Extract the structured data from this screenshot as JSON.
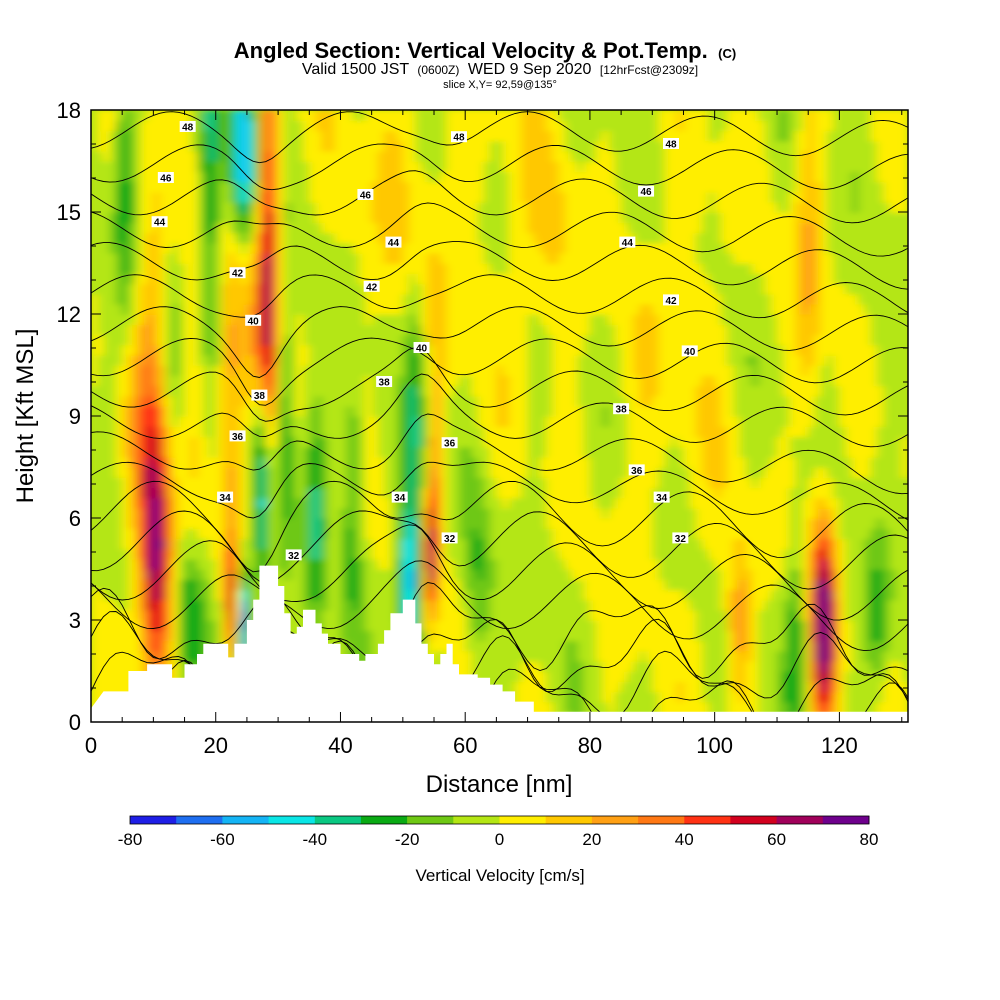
{
  "title": {
    "main": "Angled Section: Vertical Velocity & Pot.Temp.",
    "main_tag": "(C)",
    "valid_a": "Valid 1500 JST",
    "valid_b": "(0600Z)",
    "valid_c": "WED 9 Sep 2020",
    "valid_d": "[12hrFcst@2309z]",
    "slice": "slice X,Y= 92,59@135°"
  },
  "chart_data": {
    "type": "heatmap",
    "xlabel": "Distance [nm]",
    "ylabel": "Height [Kft MSL]",
    "xlim": [
      0,
      131
    ],
    "ylim": [
      0,
      18
    ],
    "x_ticks": [
      "0",
      "20",
      "40",
      "60",
      "80",
      "100",
      "120"
    ],
    "y_ticks": [
      "0",
      "3",
      "6",
      "9",
      "12",
      "15",
      "18"
    ],
    "fill_variable": "Vertical Velocity [cm/s]",
    "colorbar": {
      "label": "Vertical Velocity [cm/s]",
      "tick_labels": [
        "-80",
        "-60",
        "-40",
        "-20",
        "0",
        "20",
        "40",
        "60",
        "80"
      ],
      "levels": [
        -80,
        -70,
        -60,
        -50,
        -40,
        -30,
        -20,
        -10,
        0,
        10,
        20,
        30,
        40,
        50,
        60,
        70,
        80
      ],
      "colors": [
        "#1e1ee6",
        "#1e6ef0",
        "#14b4f5",
        "#0ae6e6",
        "#0ac882",
        "#0aaa14",
        "#6ec814",
        "#b4e614",
        "#ffee00",
        "#ffc800",
        "#ffa014",
        "#ff7814",
        "#ff3214",
        "#d2001e",
        "#a0005a",
        "#6e008c"
      ]
    },
    "contour_variable": "Potential Temperature (C)",
    "contour_labels": [
      {
        "value": "48",
        "x": 15.5,
        "y": 17.5
      },
      {
        "value": "48",
        "x": 59,
        "y": 17.2
      },
      {
        "value": "48",
        "x": 93,
        "y": 17.0
      },
      {
        "value": "46",
        "x": 12,
        "y": 16.0
      },
      {
        "value": "46",
        "x": 44,
        "y": 15.5
      },
      {
        "value": "46",
        "x": 89,
        "y": 15.6
      },
      {
        "value": "44",
        "x": 11,
        "y": 14.7
      },
      {
        "value": "44",
        "x": 48.5,
        "y": 14.1
      },
      {
        "value": "44",
        "x": 86,
        "y": 14.1
      },
      {
        "value": "42",
        "x": 23.5,
        "y": 13.2
      },
      {
        "value": "42",
        "x": 45,
        "y": 12.8
      },
      {
        "value": "42",
        "x": 93,
        "y": 12.4
      },
      {
        "value": "40",
        "x": 26,
        "y": 11.8
      },
      {
        "value": "40",
        "x": 53,
        "y": 11.0
      },
      {
        "value": "40",
        "x": 96,
        "y": 10.9
      },
      {
        "value": "38",
        "x": 27,
        "y": 9.6
      },
      {
        "value": "38",
        "x": 47,
        "y": 10.0
      },
      {
        "value": "38",
        "x": 85,
        "y": 9.2
      },
      {
        "value": "36",
        "x": 23.5,
        "y": 8.4
      },
      {
        "value": "36",
        "x": 57.5,
        "y": 8.2
      },
      {
        "value": "36",
        "x": 87.5,
        "y": 7.4
      },
      {
        "value": "34",
        "x": 21.5,
        "y": 6.6
      },
      {
        "value": "34",
        "x": 49.5,
        "y": 6.6
      },
      {
        "value": "34",
        "x": 91.5,
        "y": 6.6
      },
      {
        "value": "32",
        "x": 32.5,
        "y": 4.9
      },
      {
        "value": "32",
        "x": 57.5,
        "y": 5.4
      },
      {
        "value": "32",
        "x": 94.5,
        "y": 5.4
      }
    ],
    "terrain": [
      [
        0,
        0.4
      ],
      [
        2,
        0.9
      ],
      [
        6,
        0.9
      ],
      [
        6,
        1.5
      ],
      [
        9,
        1.5
      ],
      [
        9,
        1.7
      ],
      [
        13,
        1.7
      ],
      [
        13,
        1.3
      ],
      [
        15,
        1.3
      ],
      [
        15,
        1.7
      ],
      [
        17,
        1.7
      ],
      [
        17,
        2.0
      ],
      [
        18,
        2.0
      ],
      [
        18,
        2.3
      ],
      [
        22,
        2.3
      ],
      [
        22,
        1.9
      ],
      [
        23,
        1.9
      ],
      [
        23,
        2.3
      ],
      [
        25,
        2.3
      ],
      [
        25,
        3.0
      ],
      [
        26,
        3.0
      ],
      [
        26,
        3.6
      ],
      [
        27,
        3.6
      ],
      [
        27,
        4.6
      ],
      [
        30,
        4.6
      ],
      [
        30,
        4.0
      ],
      [
        31,
        4.0
      ],
      [
        31,
        3.2
      ],
      [
        32,
        3.2
      ],
      [
        32,
        2.6
      ],
      [
        33,
        2.6
      ],
      [
        33,
        2.8
      ],
      [
        34,
        2.8
      ],
      [
        34,
        3.3
      ],
      [
        36,
        3.3
      ],
      [
        36,
        2.9
      ],
      [
        37,
        2.9
      ],
      [
        37,
        2.6
      ],
      [
        38,
        2.6
      ],
      [
        38,
        2.3
      ],
      [
        40,
        2.3
      ],
      [
        40,
        2.0
      ],
      [
        43,
        2.0
      ],
      [
        43,
        1.8
      ],
      [
        44,
        1.8
      ],
      [
        44,
        2.0
      ],
      [
        46,
        2.0
      ],
      [
        46,
        2.3
      ],
      [
        47,
        2.3
      ],
      [
        47,
        2.7
      ],
      [
        48,
        2.7
      ],
      [
        48,
        3.2
      ],
      [
        50,
        3.2
      ],
      [
        50,
        3.6
      ],
      [
        52,
        3.6
      ],
      [
        52,
        2.9
      ],
      [
        53,
        2.9
      ],
      [
        53,
        2.3
      ],
      [
        54,
        2.3
      ],
      [
        54,
        2.0
      ],
      [
        55,
        2.0
      ],
      [
        55,
        1.7
      ],
      [
        56,
        1.7
      ],
      [
        56,
        2.0
      ],
      [
        57,
        2.0
      ],
      [
        57,
        2.3
      ],
      [
        58,
        2.3
      ],
      [
        58,
        1.7
      ],
      [
        59,
        1.7
      ],
      [
        59,
        1.4
      ],
      [
        62,
        1.4
      ],
      [
        62,
        1.3
      ],
      [
        64,
        1.3
      ],
      [
        64,
        1.1
      ],
      [
        66,
        1.1
      ],
      [
        66,
        0.9
      ],
      [
        68,
        0.9
      ],
      [
        68,
        0.6
      ],
      [
        71,
        0.6
      ],
      [
        71,
        0.3
      ],
      [
        131,
        0.3
      ],
      [
        131,
        0
      ]
    ],
    "series": [
      {
        "name": "",
        "values": []
      }
    ]
  }
}
